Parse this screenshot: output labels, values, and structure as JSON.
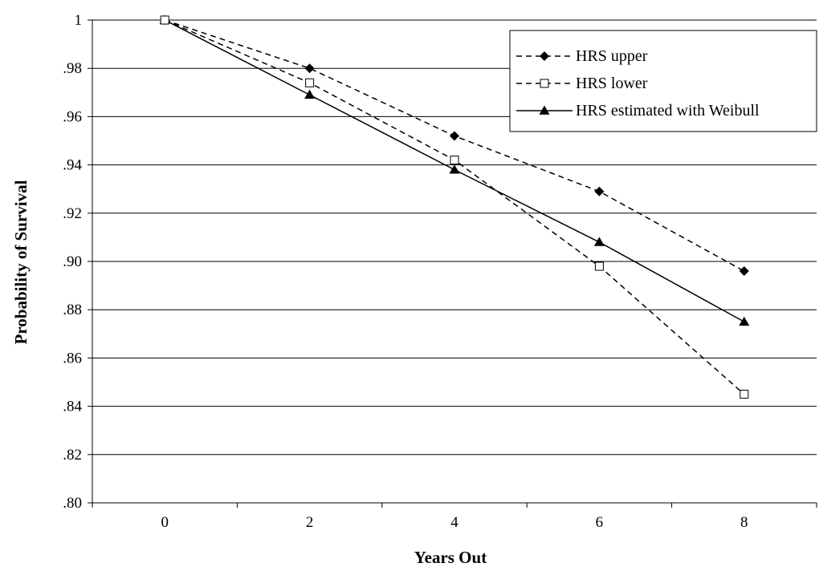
{
  "chart_data": {
    "type": "line",
    "title": "",
    "xlabel": "Years Out",
    "ylabel": "Probability of Survival",
    "x": [
      0,
      2,
      4,
      6,
      8
    ],
    "xlim": [
      -1,
      9
    ],
    "ylim": [
      0.8,
      1.0
    ],
    "x_tick_labels": [
      "0",
      "2",
      "4",
      "6",
      "8"
    ],
    "y_tick_labels": [
      ".80",
      ".82",
      ".84",
      ".86",
      ".88",
      ".90",
      ".92",
      ".94",
      ".96",
      ".98",
      "1"
    ],
    "y_ticks": [
      0.8,
      0.82,
      0.84,
      0.86,
      0.88,
      0.9,
      0.92,
      0.94,
      0.96,
      0.98,
      1.0
    ],
    "grid": "horizontal",
    "legend_position": "top-right",
    "series": [
      {
        "name": "HRS upper",
        "values": [
          1.0,
          0.98,
          0.952,
          0.929,
          0.896
        ],
        "line": "dashed",
        "marker": "diamond-filled",
        "color": "#000000"
      },
      {
        "name": "HRS lower",
        "values": [
          1.0,
          0.974,
          0.942,
          0.898,
          0.845
        ],
        "line": "dashed",
        "marker": "square-open",
        "color": "#000000"
      },
      {
        "name": "HRS estimated with Weibull",
        "values": [
          1.0,
          0.969,
          0.938,
          0.908,
          0.875
        ],
        "line": "solid",
        "marker": "triangle-filled",
        "color": "#000000"
      }
    ]
  }
}
